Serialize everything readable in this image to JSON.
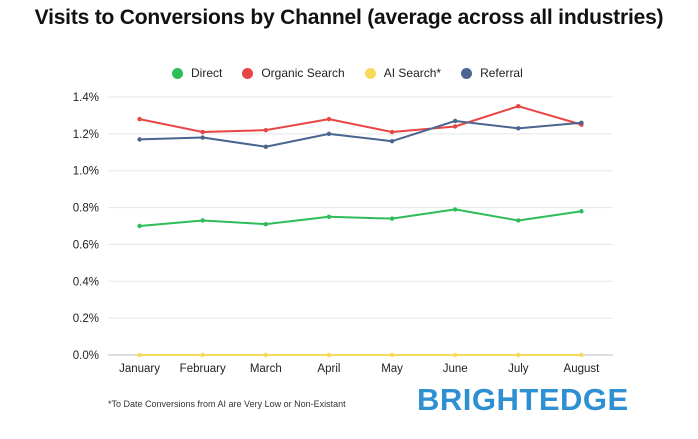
{
  "chart_data": {
    "type": "line",
    "title": "Visits to Conversions by Channel (average across all industries)",
    "xlabel": "",
    "ylabel": "",
    "categories": [
      "January",
      "February",
      "March",
      "April",
      "May",
      "June",
      "July",
      "August"
    ],
    "yticks": [
      "0.0%",
      "0.2%",
      "0.4%",
      "0.6%",
      "0.8%",
      "1.0%",
      "1.2%",
      "1.4%"
    ],
    "ylim": [
      0,
      1.4
    ],
    "grid": true,
    "legend_position": "top",
    "series": [
      {
        "name": "Direct",
        "color": "#2ebd59",
        "values": [
          0.7,
          0.73,
          0.71,
          0.75,
          0.74,
          0.79,
          0.73,
          0.78
        ]
      },
      {
        "name": "Organic Search",
        "color": "#e84545",
        "values": [
          1.28,
          1.21,
          1.22,
          1.28,
          1.21,
          1.24,
          1.35,
          1.25
        ]
      },
      {
        "name": "AI Search*",
        "color": "#f7d95c",
        "values": [
          0.0,
          0.0,
          0.0,
          0.0,
          0.0,
          0.0,
          0.0,
          0.0
        ]
      },
      {
        "name": "Referral",
        "color": "#4a6590",
        "values": [
          1.17,
          1.18,
          1.13,
          1.2,
          1.16,
          1.27,
          1.23,
          1.26
        ]
      }
    ]
  },
  "footnote": "*To Date Conversions from AI are Very Low or Non-Existant",
  "logo_text": "BRIGHTEDGE",
  "colors": {
    "logo": "#2f8fd3",
    "grid": "#e6e6e6",
    "axis": "#bdbdbd"
  }
}
